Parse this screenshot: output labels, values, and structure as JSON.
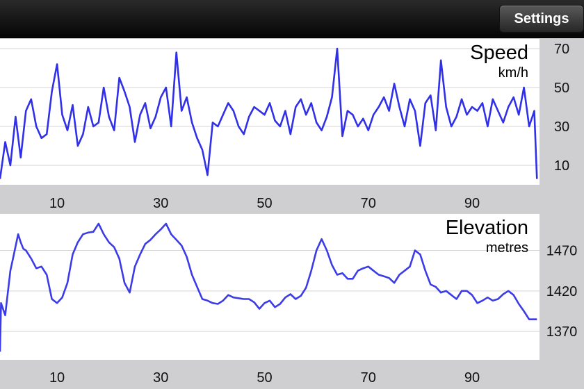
{
  "navbar": {
    "settings_label": "Settings"
  },
  "colors": {
    "series": "#3030e8",
    "plot_background": "#ffffff",
    "app_background": "#cfcfd2",
    "grid": "#d4d4d4"
  },
  "chart_data": [
    {
      "type": "line",
      "title": "Speed",
      "subtitle": "km/h",
      "x_ticks": [
        10,
        30,
        50,
        70,
        90
      ],
      "y_ticks": [
        10,
        30,
        50,
        70
      ],
      "xlim": [
        -1,
        103
      ],
      "ylim": [
        0,
        75
      ],
      "grid": true,
      "series": [
        {
          "x": [
            -1,
            0,
            1,
            2,
            3,
            4,
            5,
            6,
            7,
            8,
            9,
            10,
            11,
            12,
            13,
            14,
            15,
            16,
            17,
            18,
            19,
            20,
            21,
            22,
            23,
            24,
            25,
            26,
            27,
            28,
            29,
            30,
            31,
            32,
            33,
            34,
            35,
            36,
            37,
            38,
            39,
            40,
            41,
            42,
            43,
            44,
            45,
            46,
            47,
            48,
            49,
            50,
            51,
            52,
            53,
            54,
            55,
            56,
            57,
            58,
            59,
            60,
            61,
            62,
            63,
            64,
            65,
            66,
            67,
            68,
            69,
            70,
            71,
            72,
            73,
            74,
            75,
            76,
            77,
            78,
            79,
            80,
            81,
            82,
            83,
            84,
            85,
            86,
            87,
            88,
            89,
            90,
            91,
            92,
            93,
            94,
            95,
            96,
            97,
            98,
            99,
            100,
            101,
            102,
            102.5
          ],
          "y": [
            3,
            22,
            10,
            35,
            14,
            38,
            44,
            30,
            24,
            26,
            48,
            62,
            36,
            28,
            41,
            20,
            26,
            40,
            30,
            32,
            50,
            35,
            28,
            55,
            48,
            40,
            22,
            36,
            42,
            29,
            35,
            45,
            50,
            30,
            68,
            38,
            45,
            32,
            24,
            18,
            5,
            32,
            30,
            36,
            42,
            38,
            30,
            26,
            35,
            40,
            38,
            36,
            42,
            33,
            30,
            38,
            26,
            40,
            44,
            36,
            42,
            32,
            28,
            35,
            45,
            70,
            25,
            38,
            36,
            30,
            34,
            28,
            36,
            40,
            45,
            38,
            52,
            40,
            30,
            44,
            38,
            20,
            42,
            46,
            28,
            64,
            40,
            30,
            35,
            44,
            36,
            40,
            38,
            42,
            30,
            44,
            38,
            32,
            40,
            45,
            36,
            50,
            30,
            38,
            3
          ]
        }
      ]
    },
    {
      "type": "line",
      "title": "Elevation",
      "subtitle": "metres",
      "x_ticks": [
        10,
        30,
        50,
        70,
        90
      ],
      "y_ticks": [
        1370,
        1420,
        1470
      ],
      "xlim": [
        -1,
        103
      ],
      "ylim": [
        1335,
        1515
      ],
      "grid": true,
      "series": [
        {
          "x": [
            -1,
            -0.8,
            0,
            1,
            1.5,
            2,
            2.5,
            3,
            3.5,
            4,
            5,
            6,
            7,
            8,
            9,
            10,
            11,
            12,
            13,
            14,
            15,
            16,
            17,
            18,
            19,
            20,
            21,
            22,
            23,
            24,
            25,
            26,
            27,
            28,
            29,
            30,
            31,
            32,
            33,
            34,
            35,
            36,
            37,
            38,
            39,
            40,
            41,
            42,
            43,
            44,
            45,
            46,
            47,
            48,
            49,
            50,
            51,
            52,
            53,
            54,
            55,
            56,
            57,
            58,
            59,
            60,
            61,
            62,
            63,
            64,
            65,
            66,
            67,
            68,
            69,
            70,
            71,
            72,
            73,
            74,
            75,
            76,
            77,
            78,
            79,
            80,
            81,
            82,
            83,
            84,
            85,
            86,
            87,
            88,
            89,
            90,
            91,
            92,
            93,
            94,
            95,
            96,
            97,
            98,
            99,
            100,
            101,
            102,
            102.5
          ],
          "y": [
            1345,
            1405,
            1390,
            1445,
            1460,
            1475,
            1490,
            1480,
            1472,
            1470,
            1460,
            1448,
            1450,
            1440,
            1410,
            1405,
            1412,
            1430,
            1465,
            1480,
            1490,
            1492,
            1493,
            1503,
            1490,
            1480,
            1474,
            1460,
            1430,
            1418,
            1450,
            1465,
            1478,
            1483,
            1490,
            1496,
            1503,
            1490,
            1483,
            1476,
            1462,
            1440,
            1425,
            1410,
            1408,
            1405,
            1404,
            1408,
            1415,
            1412,
            1411,
            1410,
            1410,
            1406,
            1398,
            1405,
            1408,
            1400,
            1404,
            1412,
            1416,
            1410,
            1414,
            1424,
            1445,
            1470,
            1484,
            1470,
            1452,
            1440,
            1442,
            1435,
            1435,
            1445,
            1448,
            1450,
            1445,
            1440,
            1438,
            1436,
            1430,
            1440,
            1445,
            1450,
            1470,
            1465,
            1445,
            1428,
            1425,
            1418,
            1420,
            1415,
            1410,
            1420,
            1420,
            1415,
            1405,
            1408,
            1412,
            1408,
            1410,
            1416,
            1420,
            1415,
            1404,
            1395,
            1385,
            1385,
            1385
          ]
        }
      ]
    }
  ]
}
